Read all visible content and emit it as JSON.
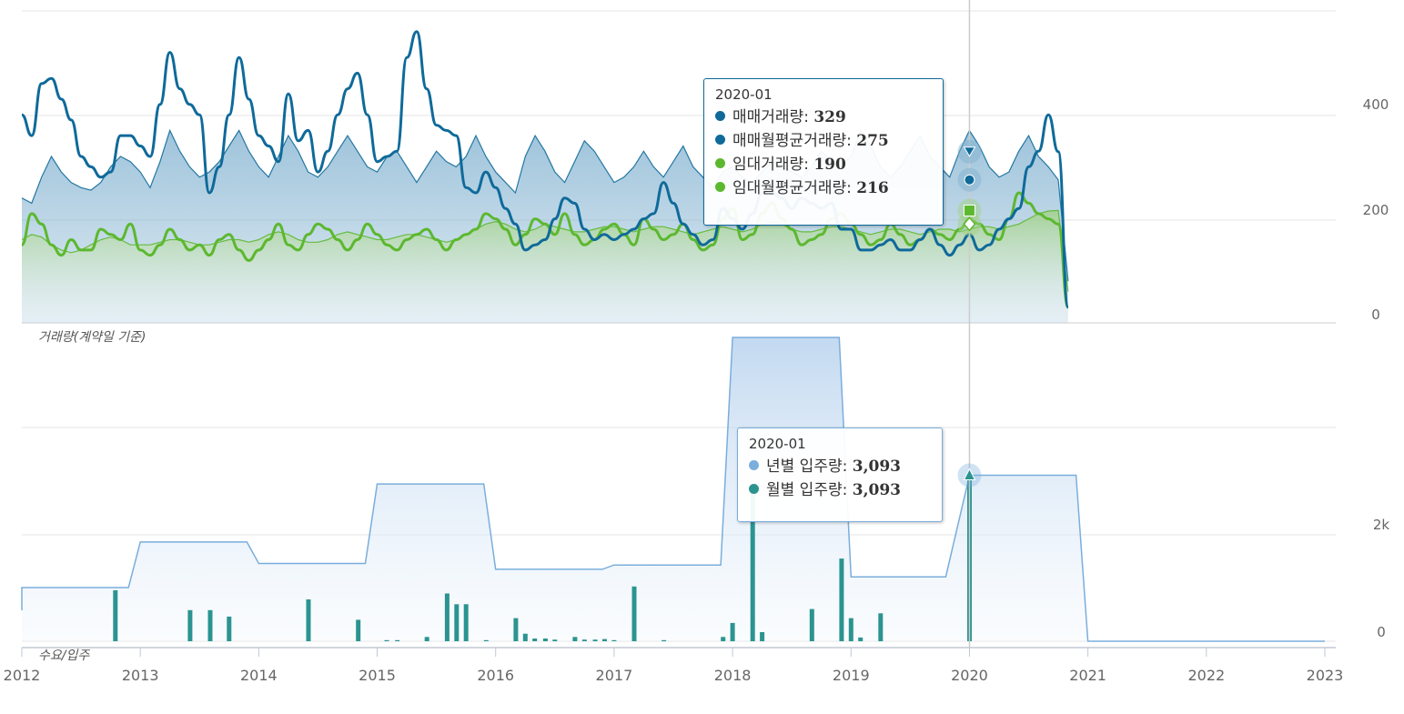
{
  "colors": {
    "sale": "#0f6a9a",
    "sale_avg_fill": "#7fb0cf",
    "rent": "#5cb82f",
    "rent_avg_fill": "#9fd07e",
    "supply_area": "#7aaedc",
    "supply_bar": "#2b9490",
    "grid": "#e6e6e6",
    "crosshair": "#cccccc"
  },
  "chart_data": [
    {
      "type": "line",
      "panel_title": "거래량(계약일 기준)",
      "y_ticks": [
        "400",
        "200",
        "0"
      ],
      "ylim": [
        0,
        600
      ],
      "x_start": 2012.0,
      "x_step_years": 0.08333,
      "series": [
        {
          "name": "매매거래량",
          "style": "line",
          "values": [
            400,
            360,
            460,
            470,
            430,
            390,
            320,
            300,
            280,
            290,
            360,
            360,
            340,
            320,
            420,
            520,
            450,
            420,
            400,
            250,
            300,
            400,
            510,
            430,
            360,
            340,
            310,
            440,
            350,
            370,
            290,
            330,
            400,
            450,
            480,
            400,
            310,
            320,
            330,
            510,
            560,
            450,
            380,
            370,
            360,
            260,
            250,
            290,
            260,
            220,
            190,
            140,
            150,
            160,
            200,
            240,
            230,
            180,
            160,
            170,
            160,
            170,
            180,
            200,
            210,
            270,
            230,
            190,
            170,
            150,
            160,
            220,
            200,
            180,
            210,
            250,
            250,
            240,
            220,
            240,
            230,
            220,
            230,
            180,
            180,
            140,
            140,
            150,
            160,
            140,
            140,
            160,
            180,
            150,
            130,
            150,
            170,
            140,
            150,
            180,
            200,
            220,
            300,
            330,
            400,
            329,
            30
          ]
        },
        {
          "name": "매매월평균거래량",
          "style": "area",
          "values": [
            240,
            230,
            280,
            320,
            290,
            270,
            260,
            255,
            270,
            300,
            320,
            310,
            290,
            260,
            310,
            370,
            330,
            300,
            280,
            290,
            310,
            340,
            370,
            330,
            300,
            280,
            320,
            360,
            330,
            290,
            280,
            300,
            330,
            360,
            330,
            300,
            290,
            320,
            330,
            300,
            270,
            300,
            330,
            310,
            300,
            320,
            360,
            320,
            290,
            270,
            250,
            320,
            360,
            330,
            290,
            270,
            310,
            350,
            330,
            300,
            270,
            280,
            300,
            330,
            300,
            280,
            310,
            340,
            300,
            280,
            260,
            290,
            300,
            280,
            270,
            290,
            310,
            300,
            290,
            280,
            300,
            330,
            310,
            300,
            320,
            370,
            340,
            300,
            280,
            300,
            330,
            360,
            320,
            300,
            280,
            330,
            370,
            340,
            300,
            280,
            290,
            330,
            360,
            320,
            300,
            275,
            80
          ]
        },
        {
          "name": "임대거래량",
          "style": "line",
          "values": [
            150,
            210,
            190,
            150,
            130,
            160,
            140,
            140,
            180,
            170,
            160,
            190,
            140,
            130,
            150,
            180,
            160,
            140,
            150,
            130,
            160,
            170,
            140,
            120,
            140,
            160,
            190,
            150,
            140,
            170,
            190,
            180,
            160,
            140,
            160,
            190,
            170,
            150,
            140,
            160,
            170,
            180,
            160,
            140,
            160,
            170,
            180,
            210,
            200,
            180,
            150,
            170,
            200,
            190,
            170,
            210,
            170,
            150,
            160,
            180,
            190,
            170,
            150,
            200,
            180,
            160,
            170,
            190,
            160,
            140,
            150,
            200,
            220,
            160,
            170,
            210,
            230,
            200,
            180,
            150,
            160,
            170,
            200,
            210,
            190,
            170,
            150,
            160,
            190,
            170,
            150,
            160,
            180,
            170,
            160,
            180,
            200,
            190,
            170,
            160,
            200,
            250,
            230,
            210,
            200,
            190,
            30
          ]
        },
        {
          "name": "임대월평균거래량",
          "style": "area",
          "values": [
            160,
            170,
            165,
            150,
            140,
            135,
            140,
            150,
            160,
            165,
            160,
            150,
            150,
            150,
            155,
            160,
            160,
            155,
            150,
            150,
            155,
            160,
            160,
            155,
            160,
            170,
            175,
            170,
            160,
            155,
            155,
            160,
            170,
            175,
            170,
            165,
            160,
            160,
            165,
            170,
            170,
            165,
            160,
            155,
            160,
            170,
            180,
            190,
            195,
            190,
            180,
            175,
            180,
            190,
            185,
            180,
            175,
            175,
            180,
            185,
            185,
            180,
            175,
            180,
            185,
            185,
            180,
            175,
            170,
            175,
            180,
            185,
            180,
            175,
            180,
            190,
            195,
            190,
            180,
            175,
            175,
            180,
            185,
            185,
            180,
            175,
            170,
            175,
            180,
            180,
            175,
            170,
            175,
            180,
            180,
            175,
            180,
            185,
            185,
            180,
            185,
            190,
            200,
            210,
            215,
            216,
            60
          ]
        }
      ]
    },
    {
      "type": "bar",
      "panel_title": "수요/입주",
      "y_ticks": [
        "2k",
        "0"
      ],
      "ylim": [
        0,
        5500
      ],
      "x_axis": {
        "ticks": [
          "2012",
          "2013",
          "2014",
          "2015",
          "2016",
          "2017",
          "2018",
          "2019",
          "2020",
          "2021",
          "2022",
          "2023"
        ],
        "range": [
          2012,
          2023
        ]
      },
      "series": [
        {
          "name": "년별 입주량",
          "style": "area-step",
          "segments": [
            {
              "from": 2012.0,
              "to": 2012.9,
              "value": 1000
            },
            {
              "from": 2013.0,
              "to": 2013.9,
              "value": 1850
            },
            {
              "from": 2014.0,
              "to": 2014.9,
              "value": 1450
            },
            {
              "from": 2015.0,
              "to": 2015.9,
              "value": 2930
            },
            {
              "from": 2016.0,
              "to": 2016.9,
              "value": 1340
            },
            {
              "from": 2017.0,
              "to": 2017.9,
              "value": 1420
            },
            {
              "from": 2018.0,
              "to": 2018.9,
              "value": 5800
            },
            {
              "from": 2019.0,
              "to": 2019.8,
              "value": 1200
            },
            {
              "from": 2020.0,
              "to": 2020.9,
              "value": 3093
            },
            {
              "from": 2021.0,
              "to": 2023.0,
              "value": 0
            }
          ]
        },
        {
          "name": "월별 입주량",
          "style": "bar",
          "points": [
            {
              "x": 2012.79,
              "value": 950
            },
            {
              "x": 2013.42,
              "value": 580
            },
            {
              "x": 2013.59,
              "value": 580
            },
            {
              "x": 2013.75,
              "value": 460
            },
            {
              "x": 2014.42,
              "value": 780
            },
            {
              "x": 2014.84,
              "value": 400
            },
            {
              "x": 2015.08,
              "value": 20
            },
            {
              "x": 2015.17,
              "value": 20
            },
            {
              "x": 2015.42,
              "value": 80
            },
            {
              "x": 2015.59,
              "value": 890
            },
            {
              "x": 2015.67,
              "value": 690
            },
            {
              "x": 2015.75,
              "value": 690
            },
            {
              "x": 2015.92,
              "value": 20
            },
            {
              "x": 2016.17,
              "value": 430
            },
            {
              "x": 2016.25,
              "value": 140
            },
            {
              "x": 2016.33,
              "value": 50
            },
            {
              "x": 2016.42,
              "value": 50
            },
            {
              "x": 2016.5,
              "value": 30
            },
            {
              "x": 2016.67,
              "value": 80
            },
            {
              "x": 2016.75,
              "value": 30
            },
            {
              "x": 2016.84,
              "value": 30
            },
            {
              "x": 2016.92,
              "value": 40
            },
            {
              "x": 2017.0,
              "value": 20
            },
            {
              "x": 2017.17,
              "value": 1020
            },
            {
              "x": 2017.42,
              "value": 20
            },
            {
              "x": 2017.92,
              "value": 80
            },
            {
              "x": 2018.0,
              "value": 340
            },
            {
              "x": 2018.17,
              "value": 2780
            },
            {
              "x": 2018.25,
              "value": 170
            },
            {
              "x": 2018.67,
              "value": 600
            },
            {
              "x": 2018.92,
              "value": 1540
            },
            {
              "x": 2019.0,
              "value": 430
            },
            {
              "x": 2019.08,
              "value": 70
            },
            {
              "x": 2019.25,
              "value": 520
            },
            {
              "x": 2020.0,
              "value": 3093
            }
          ]
        }
      ]
    }
  ],
  "tooltip_top": {
    "date": "2020-01",
    "rows": [
      {
        "label": "매매거래량: ",
        "value": "329"
      },
      {
        "label": "매매월평균거래량: ",
        "value": "275"
      },
      {
        "label": "임대거래량: ",
        "value": "190"
      },
      {
        "label": "임대월평균거래량: ",
        "value": "216"
      }
    ]
  },
  "tooltip_bottom": {
    "date": "2020-01",
    "rows": [
      {
        "label": "년별 입주량: ",
        "value": "3,093"
      },
      {
        "label": "월별 입주량: ",
        "value": "3,093"
      }
    ]
  }
}
